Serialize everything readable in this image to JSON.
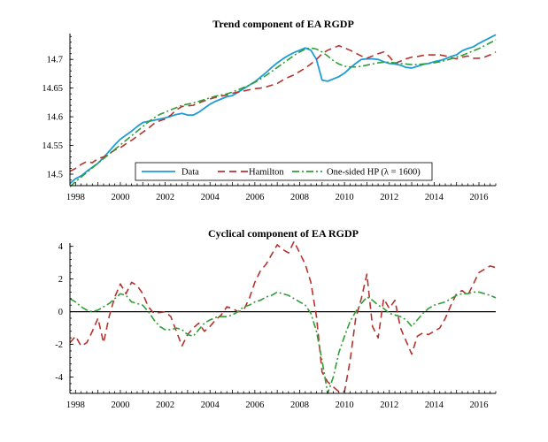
{
  "chart_data": [
    {
      "type": "line",
      "title": "Trend component of EA RGDP",
      "xlabel": "",
      "ylabel": "",
      "xlim": [
        1997.75,
        2016.75
      ],
      "ylim": [
        14.48,
        14.745
      ],
      "xticks": [
        1998,
        2000,
        2002,
        2004,
        2006,
        2008,
        2010,
        2012,
        2014,
        2016
      ],
      "yticks": [
        14.5,
        14.55,
        14.6,
        14.65,
        14.7
      ],
      "ytick_labels": [
        "14.5",
        "14.55",
        "14.6",
        "14.65",
        "14.7"
      ],
      "legend_position": "bottom-center",
      "legend_entries": [
        "Data",
        "Hamilton",
        "One-sided HP (λ = 1600)"
      ],
      "zero_line": false,
      "series": [
        {
          "name": "Data",
          "color": "#1f9bd6",
          "style": "solid",
          "x": [
            1997.75,
            1998,
            1998.25,
            1998.5,
            1998.75,
            1999,
            1999.25,
            1999.5,
            1999.75,
            2000,
            2000.25,
            2000.5,
            2000.75,
            2001,
            2001.25,
            2001.5,
            2001.75,
            2002,
            2002.25,
            2002.5,
            2002.75,
            2003,
            2003.25,
            2003.5,
            2003.75,
            2004,
            2004.25,
            2004.5,
            2004.75,
            2005,
            2005.25,
            2005.5,
            2005.75,
            2006,
            2006.25,
            2006.5,
            2006.75,
            2007,
            2007.25,
            2007.5,
            2007.75,
            2008,
            2008.25,
            2008.5,
            2008.75,
            2009,
            2009.25,
            2009.5,
            2009.75,
            2010,
            2010.25,
            2010.5,
            2010.75,
            2011,
            2011.25,
            2011.5,
            2011.75,
            2012,
            2012.25,
            2012.5,
            2012.75,
            2013,
            2013.25,
            2013.5,
            2013.75,
            2014,
            2014.25,
            2014.5,
            2014.75,
            2015,
            2015.25,
            2015.5,
            2015.75,
            2016,
            2016.25,
            2016.5,
            2016.75
          ],
          "values": [
            14.484,
            14.492,
            14.497,
            14.505,
            14.512,
            14.519,
            14.529,
            14.54,
            14.551,
            14.561,
            14.568,
            14.575,
            14.583,
            14.59,
            14.592,
            14.594,
            14.596,
            14.598,
            14.601,
            14.604,
            14.606,
            14.603,
            14.603,
            14.608,
            14.615,
            14.622,
            14.627,
            14.631,
            14.635,
            14.637,
            14.643,
            14.649,
            14.655,
            14.661,
            14.669,
            14.677,
            14.686,
            14.694,
            14.701,
            14.707,
            14.712,
            14.716,
            14.72,
            14.716,
            14.7,
            14.664,
            14.662,
            14.666,
            14.67,
            14.676,
            14.685,
            14.693,
            14.7,
            14.701,
            14.701,
            14.7,
            14.696,
            14.693,
            14.692,
            14.69,
            14.686,
            14.685,
            14.688,
            14.691,
            14.693,
            14.696,
            14.698,
            14.701,
            14.705,
            14.708,
            14.715,
            14.719,
            14.722,
            14.728,
            14.733,
            14.738,
            14.743
          ]
        },
        {
          "name": "Hamilton",
          "color": "#b5332e",
          "style": "dashed",
          "x": [
            1997.75,
            1998,
            1998.25,
            1998.5,
            1998.75,
            1999,
            1999.25,
            1999.5,
            1999.75,
            2000,
            2000.25,
            2000.5,
            2000.75,
            2001,
            2001.25,
            2001.5,
            2001.75,
            2002,
            2002.25,
            2002.5,
            2002.75,
            2003,
            2003.25,
            2003.5,
            2003.75,
            2004,
            2004.25,
            2004.5,
            2004.75,
            2005,
            2005.25,
            2005.5,
            2005.75,
            2006,
            2006.25,
            2006.5,
            2006.75,
            2007,
            2007.25,
            2007.5,
            2007.75,
            2008,
            2008.25,
            2008.5,
            2008.75,
            2009,
            2009.25,
            2009.5,
            2009.75,
            2010,
            2010.25,
            2010.5,
            2010.75,
            2011,
            2011.25,
            2011.5,
            2011.75,
            2012,
            2012.25,
            2012.5,
            2012.75,
            2013,
            2013.25,
            2013.5,
            2013.75,
            2014,
            2014.25,
            2014.5,
            2014.75,
            2015,
            2015.25,
            2015.5,
            2015.75,
            2016,
            2016.25,
            2016.5,
            2016.75
          ],
          "values": [
            14.505,
            14.51,
            14.517,
            14.522,
            14.52,
            14.527,
            14.53,
            14.536,
            14.542,
            14.546,
            14.553,
            14.559,
            14.566,
            14.573,
            14.58,
            14.588,
            14.593,
            14.596,
            14.603,
            14.612,
            14.618,
            14.619,
            14.62,
            14.624,
            14.628,
            14.631,
            14.634,
            14.636,
            14.638,
            14.641,
            14.643,
            14.645,
            14.647,
            14.649,
            14.65,
            14.652,
            14.655,
            14.658,
            14.664,
            14.669,
            14.673,
            14.679,
            14.685,
            14.692,
            14.7,
            14.71,
            14.716,
            14.72,
            14.724,
            14.72,
            14.716,
            14.711,
            14.706,
            14.702,
            14.706,
            14.71,
            14.713,
            14.705,
            14.693,
            14.697,
            14.701,
            14.704,
            14.705,
            14.707,
            14.708,
            14.708,
            14.708,
            14.706,
            14.703,
            14.701,
            14.704,
            14.706,
            14.702,
            14.702,
            14.704,
            14.708,
            14.713
          ]
        },
        {
          "name": "One-sided HP (λ = 1600)",
          "color": "#2e9e35",
          "style": "dashdot",
          "x": [
            1997.75,
            1998,
            1998.25,
            1998.5,
            1998.75,
            1999,
            1999.25,
            1999.5,
            1999.75,
            2000,
            2000.25,
            2000.5,
            2000.75,
            2001,
            2001.25,
            2001.5,
            2001.75,
            2002,
            2002.25,
            2002.5,
            2002.75,
            2003,
            2003.25,
            2003.5,
            2003.75,
            2004,
            2004.25,
            2004.5,
            2004.75,
            2005,
            2005.25,
            2005.5,
            2005.75,
            2006,
            2006.25,
            2006.5,
            2006.75,
            2007,
            2007.25,
            2007.5,
            2007.75,
            2008,
            2008.25,
            2008.5,
            2008.75,
            2009,
            2009.25,
            2009.5,
            2009.75,
            2010,
            2010.25,
            2010.5,
            2010.75,
            2011,
            2011.25,
            2011.5,
            2011.75,
            2012,
            2012.25,
            2012.5,
            2012.75,
            2013,
            2013.25,
            2013.5,
            2013.75,
            2014,
            2014.25,
            2014.5,
            2014.75,
            2015,
            2015.25,
            2015.5,
            2015.75,
            2016,
            2016.25,
            2016.5,
            2016.75
          ],
          "values": [
            14.478,
            14.487,
            14.495,
            14.503,
            14.511,
            14.519,
            14.527,
            14.535,
            14.543,
            14.551,
            14.559,
            14.567,
            14.575,
            14.583,
            14.591,
            14.598,
            14.604,
            14.608,
            14.612,
            14.616,
            14.62,
            14.622,
            14.624,
            14.627,
            14.63,
            14.633,
            14.636,
            14.638,
            14.64,
            14.643,
            14.647,
            14.651,
            14.655,
            14.66,
            14.666,
            14.672,
            14.679,
            14.686,
            14.693,
            14.7,
            14.707,
            14.713,
            14.718,
            14.72,
            14.718,
            14.713,
            14.706,
            14.698,
            14.692,
            14.688,
            14.687,
            14.687,
            14.688,
            14.69,
            14.692,
            14.694,
            14.695,
            14.695,
            14.694,
            14.693,
            14.692,
            14.691,
            14.691,
            14.692,
            14.693,
            14.694,
            14.696,
            14.698,
            14.701,
            14.704,
            14.707,
            14.711,
            14.715,
            14.719,
            14.724,
            14.729,
            14.734
          ]
        }
      ]
    },
    {
      "type": "line",
      "title": "Cyclical component of EA RGDP",
      "xlabel": "",
      "ylabel": "",
      "xlim": [
        1997.75,
        2016.75
      ],
      "ylim": [
        -5,
        4.2
      ],
      "xticks": [
        1998,
        2000,
        2002,
        2004,
        2006,
        2008,
        2010,
        2012,
        2014,
        2016
      ],
      "yticks": [
        -4,
        -2,
        0,
        2,
        4
      ],
      "ytick_labels": [
        "-4",
        "-2",
        "0",
        "2",
        "4"
      ],
      "zero_line": true,
      "series": [
        {
          "name": "Hamilton",
          "color": "#b5332e",
          "style": "dashed",
          "x": [
            1997.75,
            1998,
            1998.25,
            1998.5,
            1998.75,
            1999,
            1999.25,
            1999.5,
            1999.75,
            2000,
            2000.25,
            2000.5,
            2000.75,
            2001,
            2001.25,
            2001.5,
            2001.75,
            2002,
            2002.25,
            2002.5,
            2002.75,
            2003,
            2003.25,
            2003.5,
            2003.75,
            2004,
            2004.25,
            2004.5,
            2004.75,
            2005,
            2005.25,
            2005.5,
            2005.75,
            2006,
            2006.25,
            2006.5,
            2006.75,
            2007,
            2007.25,
            2007.5,
            2007.75,
            2008,
            2008.25,
            2008.5,
            2008.75,
            2009,
            2009.25,
            2009.5,
            2009.75,
            2010,
            2010.25,
            2010.5,
            2010.75,
            2011,
            2011.25,
            2011.5,
            2011.75,
            2012,
            2012.25,
            2012.5,
            2012.75,
            2013,
            2013.25,
            2013.5,
            2013.75,
            2014,
            2014.25,
            2014.5,
            2014.75,
            2015,
            2015.25,
            2015.5,
            2015.75,
            2016,
            2016.25,
            2016.5,
            2016.75
          ],
          "values": [
            -1.9,
            -1.5,
            -2.1,
            -1.9,
            -1.2,
            -0.4,
            -1.9,
            -0.3,
            0.9,
            1.7,
            1.1,
            1.8,
            1.6,
            1.1,
            0.3,
            -0.1,
            -0.05,
            0.0,
            -0.3,
            -1.2,
            -2.1,
            -1.4,
            -1.0,
            -0.7,
            -1.2,
            -0.9,
            -0.5,
            -0.2,
            0.3,
            0.2,
            0.0,
            0.1,
            0.8,
            1.8,
            2.5,
            2.9,
            3.5,
            4.1,
            3.8,
            3.6,
            4.3,
            3.6,
            2.9,
            1.8,
            -0.3,
            -3.7,
            -4.3,
            -4.6,
            -4.9,
            -4.9,
            -3.0,
            -0.4,
            0.8,
            2.3,
            -0.9,
            -1.6,
            0.8,
            0.2,
            0.7,
            -1.0,
            -1.8,
            -2.6,
            -1.5,
            -1.3,
            -1.4,
            -1.2,
            -1.0,
            -0.4,
            0.4,
            1.1,
            1.3,
            1.0,
            1.7,
            2.4,
            2.6,
            2.8,
            2.7
          ]
        },
        {
          "name": "One-sided HP (λ = 1600)",
          "color": "#2e9e35",
          "style": "dashdot",
          "x": [
            1997.75,
            1998,
            1998.25,
            1998.5,
            1998.75,
            1999,
            1999.25,
            1999.5,
            1999.75,
            2000,
            2000.25,
            2000.5,
            2000.75,
            2001,
            2001.25,
            2001.5,
            2001.75,
            2002,
            2002.25,
            2002.5,
            2002.75,
            2003,
            2003.25,
            2003.5,
            2003.75,
            2004,
            2004.25,
            2004.5,
            2004.75,
            2005,
            2005.25,
            2005.5,
            2005.75,
            2006,
            2006.25,
            2006.5,
            2006.75,
            2007,
            2007.25,
            2007.5,
            2007.75,
            2008,
            2008.25,
            2008.5,
            2008.75,
            2009,
            2009.25,
            2009.5,
            2009.75,
            2010,
            2010.25,
            2010.5,
            2010.75,
            2011,
            2011.25,
            2011.5,
            2011.75,
            2012,
            2012.25,
            2012.5,
            2012.75,
            2013,
            2013.25,
            2013.5,
            2013.75,
            2014,
            2014.25,
            2014.5,
            2014.75,
            2015,
            2015.25,
            2015.5,
            2015.75,
            2016,
            2016.25,
            2016.5,
            2016.75
          ],
          "values": [
            0.8,
            0.6,
            0.3,
            0.1,
            0.0,
            0.1,
            0.3,
            0.5,
            0.8,
            1.1,
            1.0,
            0.6,
            0.5,
            0.4,
            0.0,
            -0.5,
            -0.9,
            -1.1,
            -1.1,
            -1.0,
            -1.1,
            -1.4,
            -1.5,
            -1.1,
            -0.7,
            -0.5,
            -0.35,
            -0.3,
            -0.3,
            -0.2,
            0.0,
            0.3,
            0.4,
            0.6,
            0.7,
            0.9,
            1.0,
            1.2,
            1.1,
            1.0,
            0.8,
            0.6,
            0.4,
            -0.1,
            -1.2,
            -3.0,
            -5.0,
            -4.0,
            -2.5,
            -1.5,
            -0.6,
            0.0,
            0.5,
            0.9,
            0.7,
            0.4,
            0.2,
            -0.1,
            -0.2,
            -0.3,
            -0.5,
            -0.9,
            -0.5,
            -0.1,
            0.2,
            0.4,
            0.5,
            0.6,
            0.8,
            1.0,
            1.1,
            1.1,
            1.2,
            1.2,
            1.1,
            1.0,
            0.85
          ]
        }
      ]
    }
  ]
}
